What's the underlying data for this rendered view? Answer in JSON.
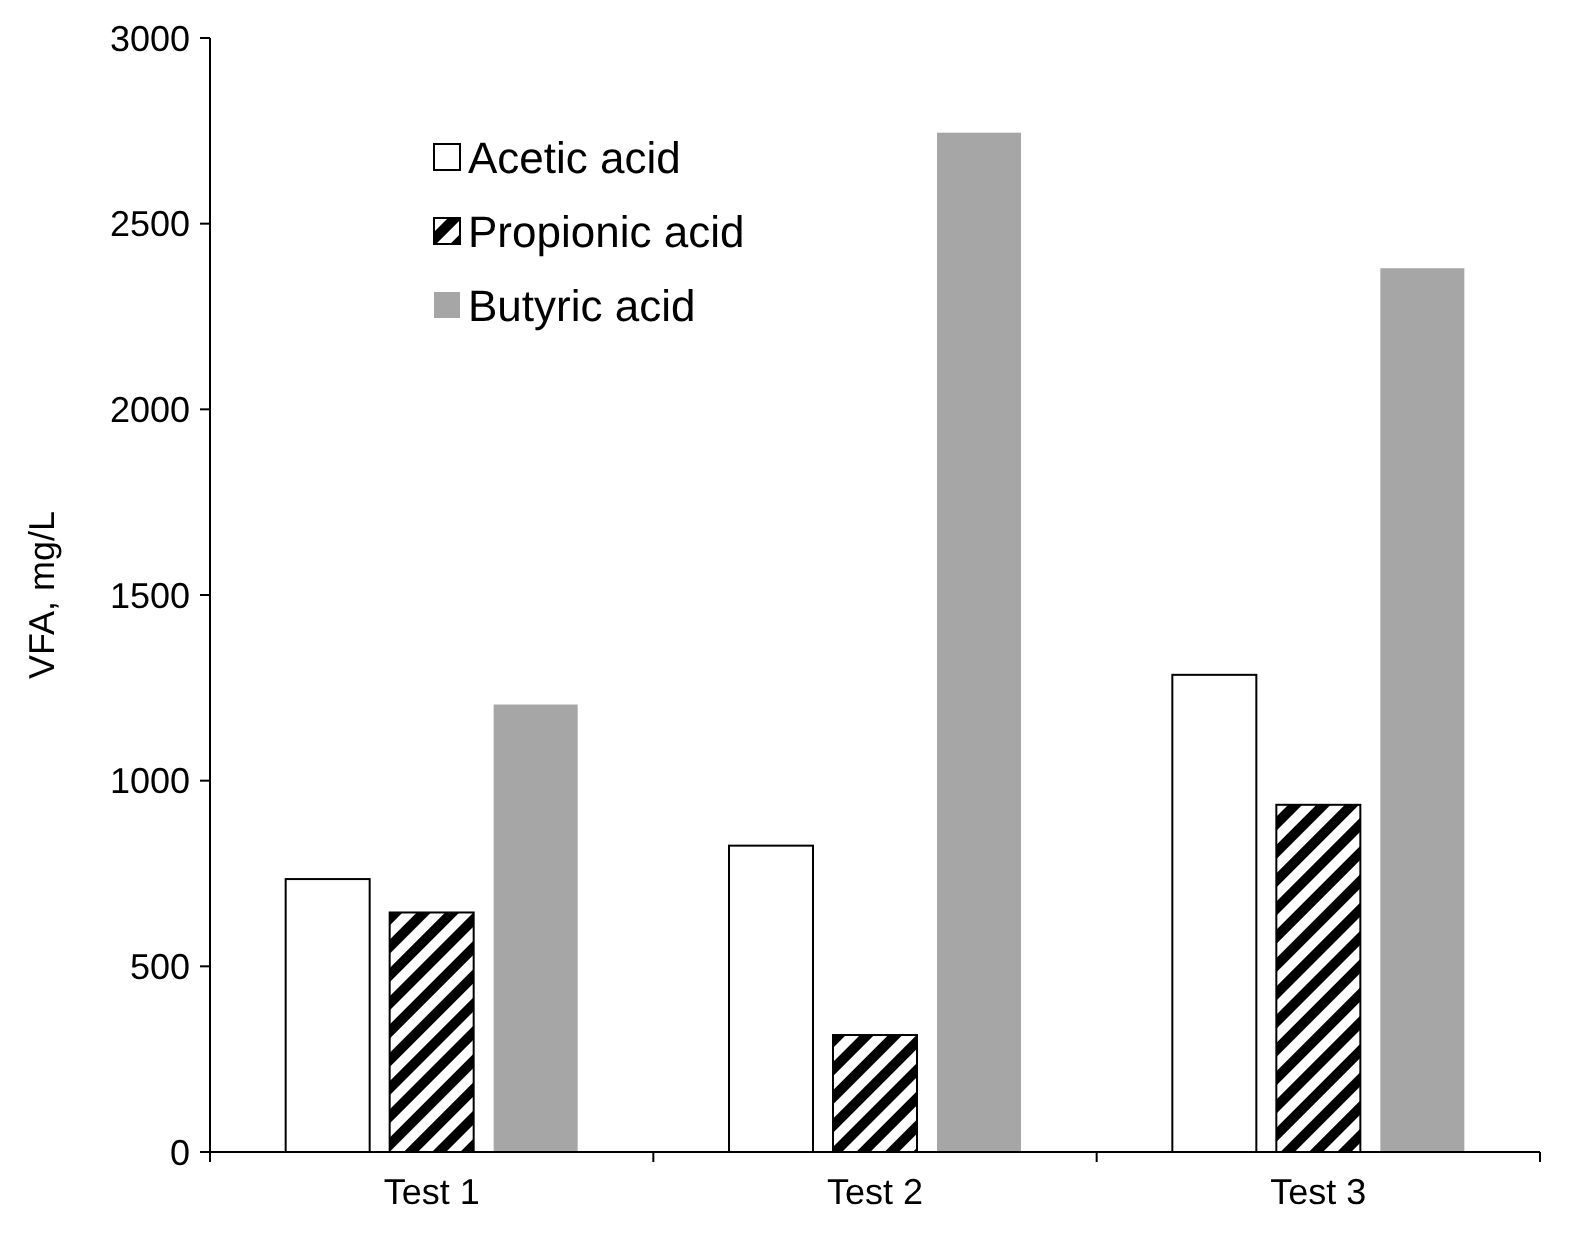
{
  "chart_data": {
    "type": "bar",
    "ylabel": "VFA, mg/L",
    "categories": [
      "Test 1",
      "Test 2",
      "Test 3"
    ],
    "series": [
      {
        "name": "Acetic acid",
        "color": "#ffffff",
        "values": [
          735,
          825,
          1285
        ]
      },
      {
        "name": "Propionic acid",
        "color": "#000000",
        "values": [
          645,
          315,
          935
        ]
      },
      {
        "name": "Butyric acid",
        "color": "#a6a6a6",
        "values": [
          1205,
          2745,
          2380
        ]
      }
    ],
    "ylim": [
      0,
      3000
    ],
    "yticks": [
      0,
      500,
      1000,
      1500,
      2000,
      2500,
      3000
    ],
    "grid": false,
    "legend": "top left"
  }
}
